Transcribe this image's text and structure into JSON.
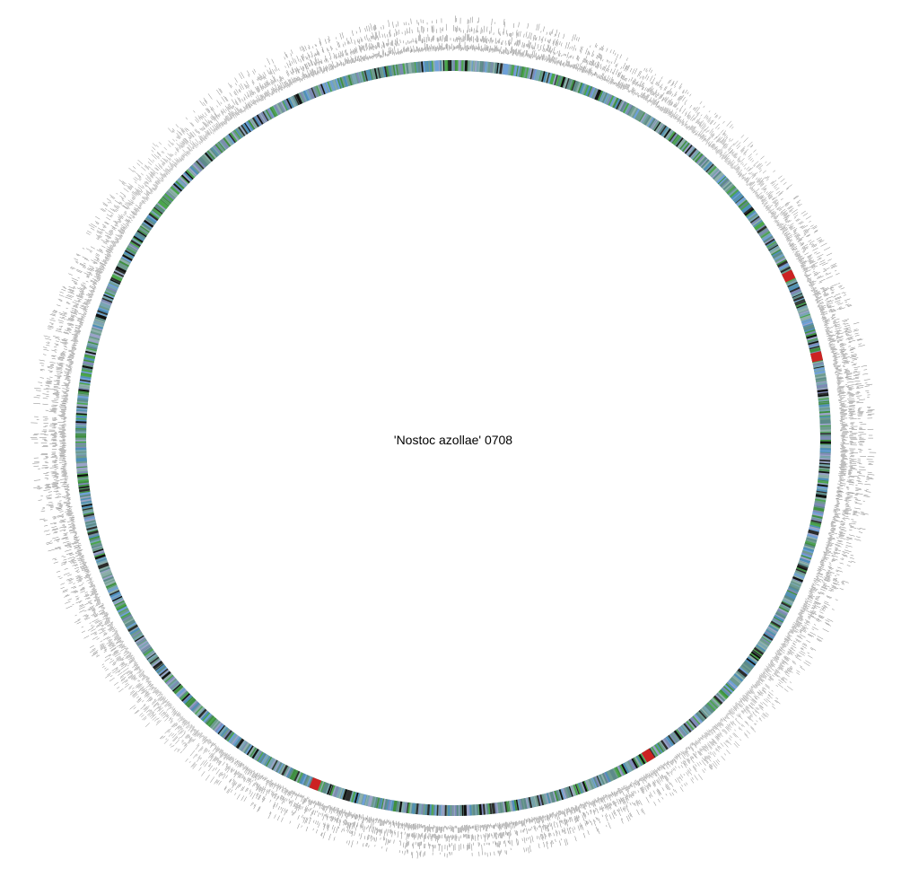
{
  "title": "'Nostoc azollae' 0708",
  "colors": {
    "background": "#ffffff",
    "gene_palette": [
      "#6e9b8e",
      "#8fb0ac",
      "#5d8a8a",
      "#79a6b3",
      "#4f8fb8",
      "#6fa0d8",
      "#3f8f3f",
      "#4aa64a",
      "#2c2c2c",
      "#111111",
      "#9aa3c8",
      "#7f89b8"
    ],
    "highlight": "#cc2222",
    "label_ticks": "#555555"
  },
  "features": {
    "highlighted_regions": 4
  }
}
